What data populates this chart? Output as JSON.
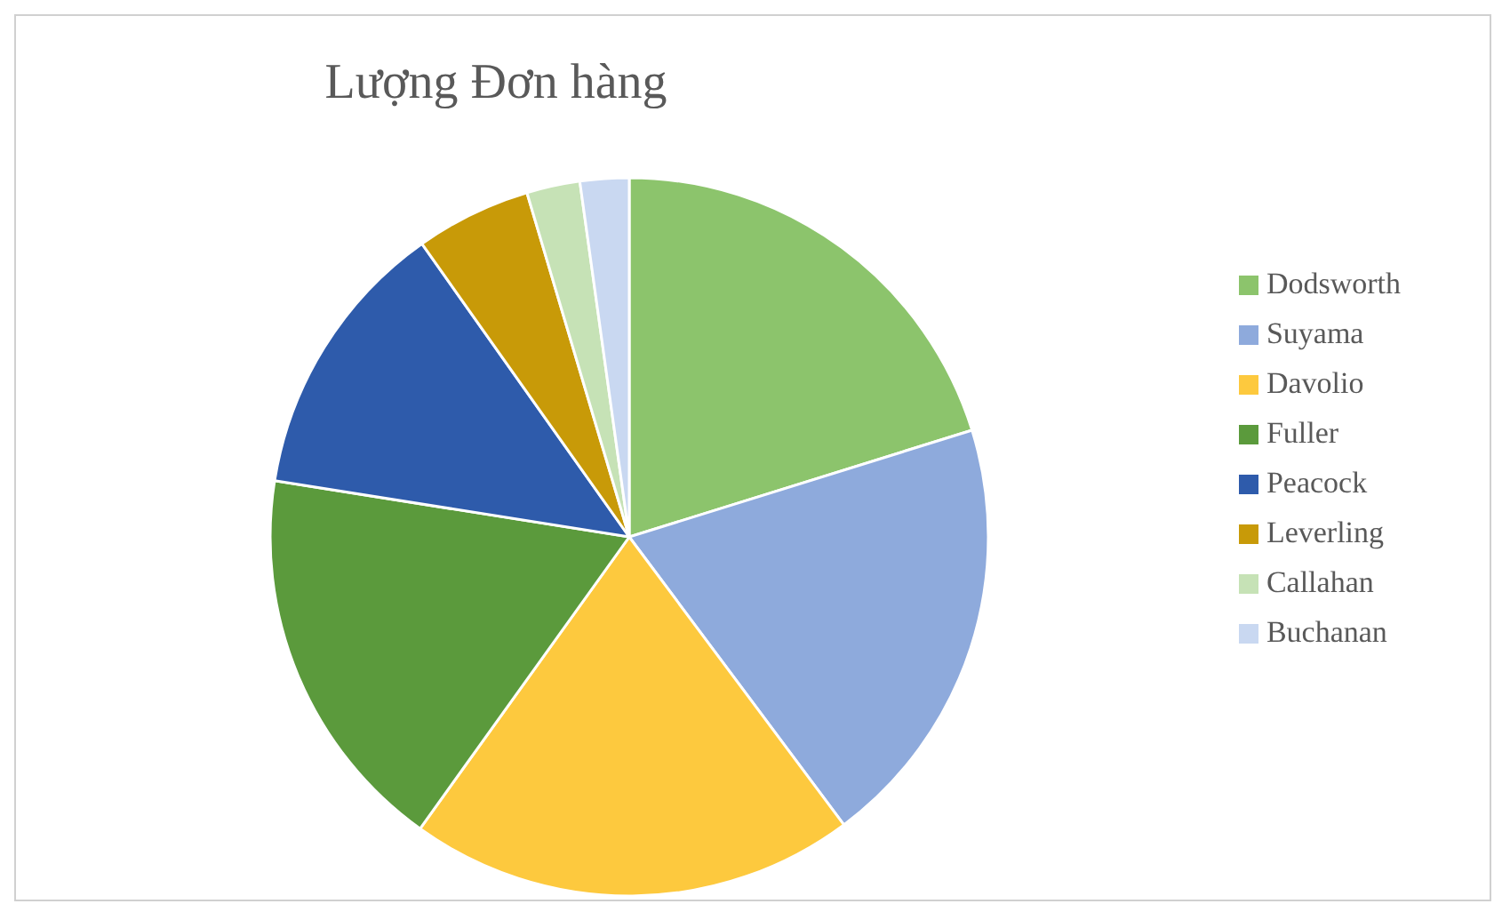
{
  "chart_data": {
    "type": "pie",
    "title": "Lượng Đơn hàng",
    "categories": [
      "Dodsworth",
      "Suyama",
      "Davolio",
      "Fuller",
      "Peacock",
      "Leverling",
      "Callahan",
      "Buchanan"
    ],
    "values": [
      20.2,
      19.6,
      20.1,
      17.6,
      12.7,
      5.2,
      2.4,
      2.2
    ],
    "colors": [
      "#8cc46c",
      "#8eaadc",
      "#fdc93e",
      "#5b9a3c",
      "#2e5bab",
      "#c89a08",
      "#c6e2b6",
      "#c9d8f1"
    ],
    "legend": "right"
  }
}
